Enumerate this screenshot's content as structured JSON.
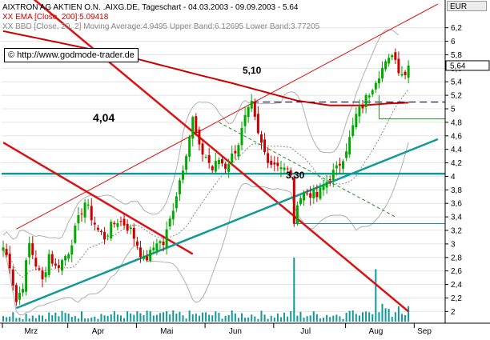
{
  "header": {
    "line1": "AIXTRON AG AKTIEN O.N. .AIXG.DE, Tageschart - 04.03.2003 - 09.09.2003 - 5.64",
    "line2": "XX EMA [Close, 200]:5.09418",
    "line3": "XX BBD [Close, 20, 2] Moving Average:4.9495 Upper Band:6.12695 Lower Band:3.77205"
  },
  "url_label": "http://www.godmode-trader.de",
  "currency": "EUR",
  "last_price_label": "5,64",
  "annotations": {
    "level_404": "4,04",
    "level_510": "5,10",
    "level_330": "3,30"
  },
  "colors": {
    "up": "#00aa00",
    "down": "#cc0000",
    "ema": "#cc0000",
    "trend_red": "#dd1111",
    "trend_teal": "#119999",
    "band": "#b0b0b0",
    "moving_average": "#888888",
    "volume": "#119999"
  },
  "chart_data": {
    "type": "candlestick",
    "title": "AIXTRON AG AKTIEN O.N. .AIXG.DE",
    "period": "04.03.2003 - 09.09.2003",
    "x_axis_labels": [
      "Mrz",
      "Apr",
      "Mai",
      "Jun",
      "Jul",
      "Aug",
      "Sep"
    ],
    "y_axis_labels": [
      "2",
      "2,2",
      "2,4",
      "2,6",
      "2,8",
      "3",
      "3,2",
      "3,4",
      "3,6",
      "3,8",
      "4",
      "4,2",
      "4,4",
      "4,6",
      "4,8",
      "5",
      "5,2",
      "5,4",
      "5,6",
      "5,8",
      "6",
      "6,2"
    ],
    "ylim": [
      1.85,
      6.35
    ],
    "days_total": 135,
    "month_start_days": [
      0,
      20,
      41,
      62,
      83,
      105,
      126
    ],
    "last_close": 5.64,
    "indicators": {
      "ema_200": 5.09418,
      "bollinger_ma": 4.9495,
      "bollinger_upper": 6.12695,
      "bollinger_lower": 3.77205
    },
    "levels": [
      {
        "label": "4,04",
        "value": 4.04,
        "style": "teal-horizontal"
      },
      {
        "label": "5,10",
        "value": 5.1,
        "style": "dashed-blue"
      },
      {
        "label": "3,30",
        "value": 3.3,
        "style": "thin-teal"
      },
      {
        "label": "",
        "value": 4.85,
        "style": "thin-green"
      }
    ],
    "ohlc_keyframes": [
      [
        0,
        2.95
      ],
      [
        2,
        2.7
      ],
      [
        4,
        2.15
      ],
      [
        6,
        2.4
      ],
      [
        8,
        3.0
      ],
      [
        10,
        2.7
      ],
      [
        12,
        2.45
      ],
      [
        14,
        2.85
      ],
      [
        16,
        2.65
      ],
      [
        18,
        2.75
      ],
      [
        20,
        2.9
      ],
      [
        22,
        3.2
      ],
      [
        24,
        3.5
      ],
      [
        25,
        3.62
      ],
      [
        27,
        3.4
      ],
      [
        29,
        3.2
      ],
      [
        31,
        3.1
      ],
      [
        33,
        3.25
      ],
      [
        35,
        3.35
      ],
      [
        37,
        3.3
      ],
      [
        39,
        3.2
      ],
      [
        41,
        3.0
      ],
      [
        43,
        2.75
      ],
      [
        45,
        2.85
      ],
      [
        47,
        3.05
      ],
      [
        49,
        3.0
      ],
      [
        51,
        3.35
      ],
      [
        53,
        3.75
      ],
      [
        55,
        4.15
      ],
      [
        57,
        4.6
      ],
      [
        58,
        4.85
      ],
      [
        60,
        4.4
      ],
      [
        62,
        4.3
      ],
      [
        64,
        4.1
      ],
      [
        66,
        4.25
      ],
      [
        68,
        4.15
      ],
      [
        70,
        4.3
      ],
      [
        72,
        4.5
      ],
      [
        74,
        4.85
      ],
      [
        76,
        5.05
      ],
      [
        78,
        4.6
      ],
      [
        80,
        4.35
      ],
      [
        82,
        4.2
      ],
      [
        84,
        4.2
      ],
      [
        86,
        4.1
      ],
      [
        88,
        4.05
      ],
      [
        89,
        3.3
      ],
      [
        90,
        3.65
      ],
      [
        92,
        3.75
      ],
      [
        94,
        3.75
      ],
      [
        96,
        3.7
      ],
      [
        98,
        3.85
      ],
      [
        100,
        4.0
      ],
      [
        102,
        4.1
      ],
      [
        104,
        4.3
      ],
      [
        106,
        4.55
      ],
      [
        108,
        4.9
      ],
      [
        110,
        5.05
      ],
      [
        112,
        5.25
      ],
      [
        114,
        5.45
      ],
      [
        116,
        5.6
      ],
      [
        118,
        5.7
      ],
      [
        119,
        5.85
      ],
      [
        121,
        5.6
      ],
      [
        123,
        5.5
      ],
      [
        124,
        5.64
      ]
    ],
    "ema_keyframes": [
      [
        0,
        6.15
      ],
      [
        20,
        5.95
      ],
      [
        40,
        5.75
      ],
      [
        60,
        5.5
      ],
      [
        70,
        5.38
      ],
      [
        80,
        5.25
      ],
      [
        90,
        5.12
      ],
      [
        100,
        5.05
      ],
      [
        110,
        5.05
      ],
      [
        118,
        5.08
      ],
      [
        124,
        5.09
      ]
    ],
    "trendlines": [
      {
        "name": "red-downtrend-1",
        "from": [
          0,
          4.5
        ],
        "to": [
          58,
          2.85
        ]
      },
      {
        "name": "red-downtrend-2",
        "from": [
          0,
          7.0
        ],
        "to": [
          124,
          2.0
        ]
      },
      {
        "name": "red-upper-channel",
        "from": [
          4,
          3.22
        ],
        "to": [
          133,
          6.55
        ]
      },
      {
        "name": "teal-uptrend",
        "from": [
          4,
          2.05
        ],
        "to": [
          133,
          4.55
        ]
      },
      {
        "name": "green-dashed-down",
        "from": [
          66,
          4.8
        ],
        "to": [
          120,
          3.4
        ]
      }
    ],
    "volume_spikes": [
      {
        "day": 89,
        "height": 1.0
      },
      {
        "day": 114,
        "height": 0.82
      }
    ]
  }
}
